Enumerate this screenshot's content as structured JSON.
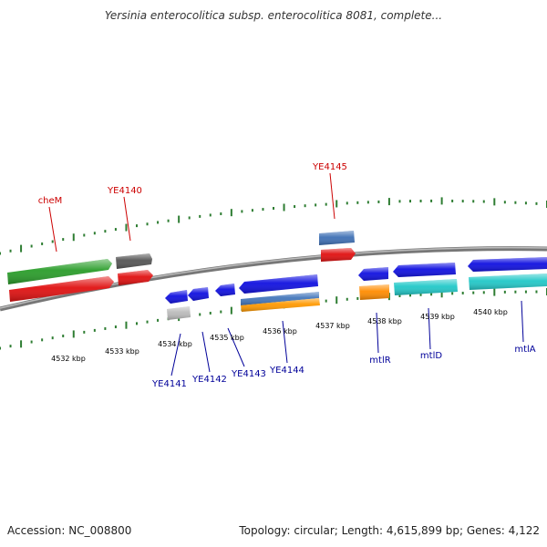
{
  "title": "Yersinia enterocolitica subsp. enterocolitica 8081, complete...",
  "footer": {
    "accession": "Accession: NC_008800",
    "summary": "Topology: circular; Length: 4,615,899 bp; Genes: 4,122"
  },
  "colors": {
    "backbone": "#888888",
    "tick": "#2e7d32",
    "forward_label": "#cc0000",
    "reverse_label": "#000099"
  },
  "scale_labels": [
    "4532 kbp",
    "4533 kbp",
    "4534 kbp",
    "4535 kbp",
    "4536 kbp",
    "4537 kbp",
    "4538 kbp",
    "4539 kbp",
    "4540 kbp"
  ],
  "gene_labels": {
    "forward": [
      "cheM",
      "YE4140",
      "YE4145"
    ],
    "reverse": [
      "YE4141",
      "YE4142",
      "YE4143",
      "YE4144",
      "mtlR",
      "mtlD",
      "mtlA"
    ]
  },
  "genes": [
    {
      "strand": "+",
      "color": "#33bb33"
    },
    {
      "strand": "+",
      "color": "#ee1111"
    },
    {
      "strand": "+",
      "color": "#666666"
    },
    {
      "strand": "+",
      "color": "#ee1111"
    },
    {
      "strand": "+",
      "color": "#4477bb"
    },
    {
      "strand": "+",
      "color": "#ee1111"
    },
    {
      "strand": "-",
      "color": "#1111ee"
    },
    {
      "strand": "-",
      "color": "#1111ee"
    },
    {
      "strand": "-",
      "color": "#1111ee"
    },
    {
      "strand": "-",
      "color": "#1111ee"
    },
    {
      "strand": "-",
      "color": "#bbbbbb"
    },
    {
      "strand": "-",
      "color": "#4477bb"
    },
    {
      "strand": "-",
      "color": "#ff9900"
    },
    {
      "strand": "-",
      "color": "#1111ee"
    },
    {
      "strand": "-",
      "color": "#1111ee"
    },
    {
      "strand": "-",
      "color": "#1111ee"
    },
    {
      "strand": "-",
      "color": "#ff9900"
    },
    {
      "strand": "-",
      "color": "#22cccc"
    },
    {
      "strand": "-",
      "color": "#22cccc"
    }
  ]
}
